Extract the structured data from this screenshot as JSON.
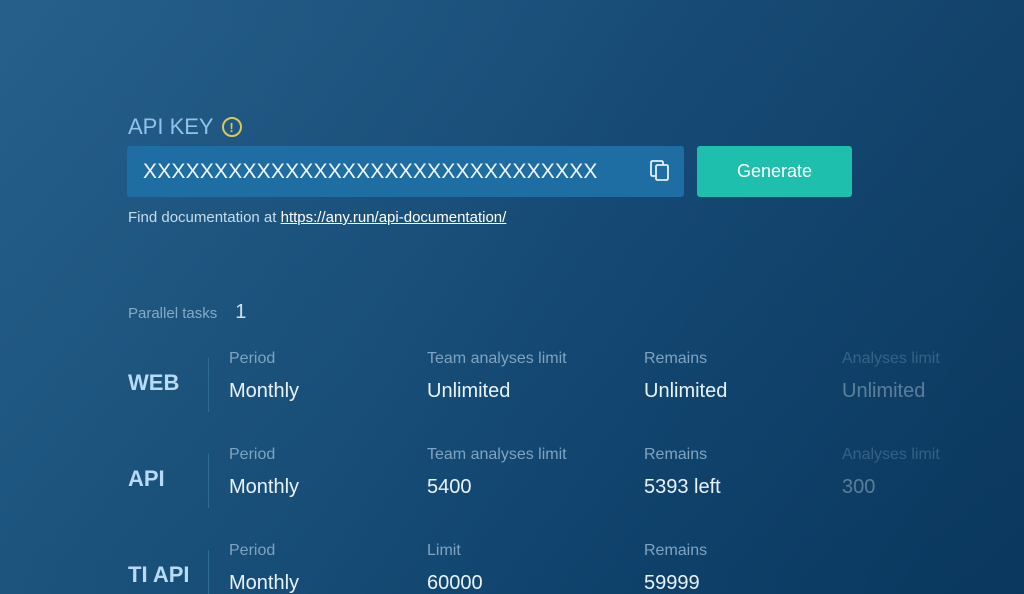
{
  "api_key": {
    "title": "API KEY",
    "warning_icon": "exclamation-circle-icon",
    "value": "XXXXXXXXXXXXXXXXXXXXXXXXXXXXXXXX",
    "copy_icon": "copy-icon",
    "generate_label": "Generate",
    "doc_prefix": "Find documentation at",
    "doc_link": "https://any.run/api-documentation/"
  },
  "parallel": {
    "label": "Parallel tasks",
    "value": "1"
  },
  "rows": [
    {
      "name": "WEB",
      "cols": [
        {
          "label": "Period",
          "value": "Monthly"
        },
        {
          "label": "Team analyses limit",
          "value": "Unlimited"
        },
        {
          "label": "Remains",
          "value": "Unlimited"
        },
        {
          "label": "Analyses limit",
          "value": "Unlimited"
        }
      ]
    },
    {
      "name": "API",
      "cols": [
        {
          "label": "Period",
          "value": "Monthly"
        },
        {
          "label": "Team analyses limit",
          "value": "5400"
        },
        {
          "label": "Remains",
          "value": "5393 left"
        },
        {
          "label": "Analyses limit",
          "value": "300"
        }
      ]
    },
    {
      "name": "TI API",
      "cols": [
        {
          "label": "Period",
          "value": "Monthly"
        },
        {
          "label": "Limit",
          "value": "60000"
        },
        {
          "label": "Remains",
          "value": "59999"
        }
      ]
    }
  ],
  "colors": {
    "accent": "#1fbfae",
    "input_bg": "#1f6ea3",
    "warning": "#d8c860"
  }
}
